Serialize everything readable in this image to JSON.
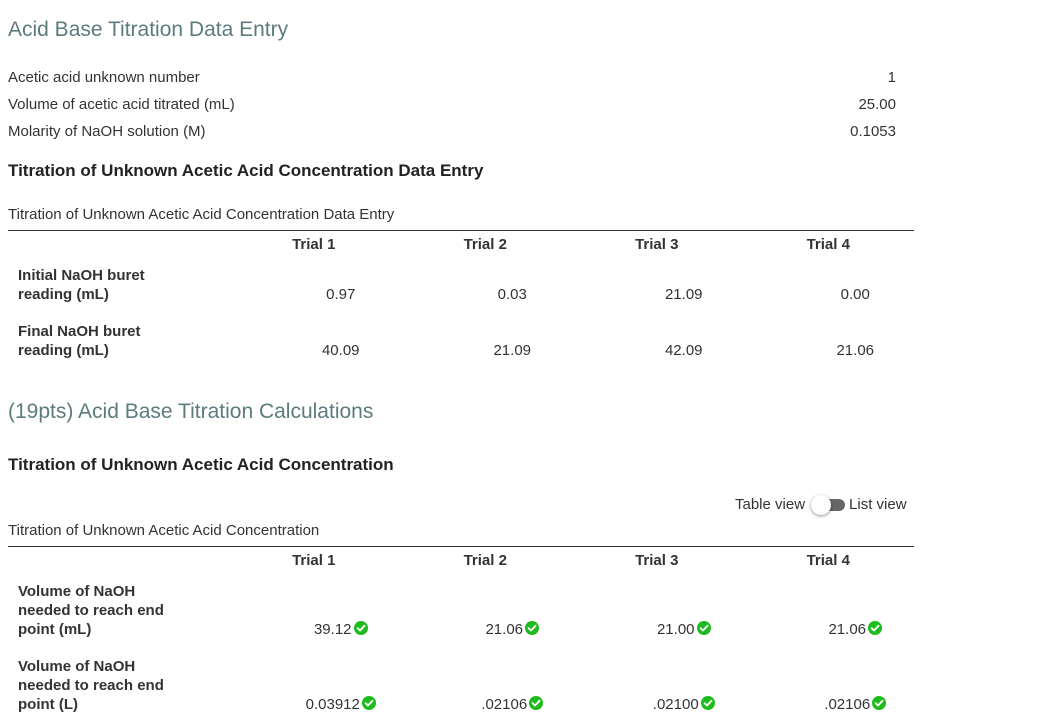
{
  "entry": {
    "title": "Acid Base Titration Data Entry",
    "fields": [
      {
        "label": "Acetic acid unknown number",
        "value": "1"
      },
      {
        "label": "Volume of acetic acid titrated (mL)",
        "value": "25.00"
      },
      {
        "label": "Molarity of NaOH solution (M)",
        "value": "0.1053"
      }
    ],
    "heading": "Titration of Unknown Acetic Acid Concentration Data Entry",
    "table": {
      "caption": "Titration of Unknown Acetic Acid Concentration Data Entry",
      "columns": [
        "Trial 1",
        "Trial 2",
        "Trial 3",
        "Trial 4"
      ],
      "rows": [
        {
          "label": "Initial NaOH buret reading (mL)",
          "cells": [
            "0.97",
            "0.03",
            "21.09",
            "0.00"
          ]
        },
        {
          "label": "Final NaOH buret reading (mL)",
          "cells": [
            "40.09",
            "21.09",
            "42.09",
            "21.06"
          ]
        }
      ]
    }
  },
  "calculations": {
    "title": "(19pts) Acid Base Titration Calculations",
    "heading": "Titration of Unknown Acetic Acid Concentration",
    "toggle": {
      "left": "Table view",
      "right": "List view"
    },
    "table": {
      "caption": "Titration of Unknown Acetic Acid Concentration",
      "columns": [
        "Trial 1",
        "Trial 2",
        "Trial 3",
        "Trial 4"
      ],
      "rows": [
        {
          "label": "Volume of NaOH needed to reach end point (mL)",
          "cells": [
            "39.12",
            "21.06",
            "21.00",
            "21.06"
          ]
        },
        {
          "label": "Volume of NaOH needed to reach end point (L)",
          "cells": [
            "0.03912",
            ".02106",
            ".02100",
            ".02106"
          ]
        }
      ]
    }
  }
}
